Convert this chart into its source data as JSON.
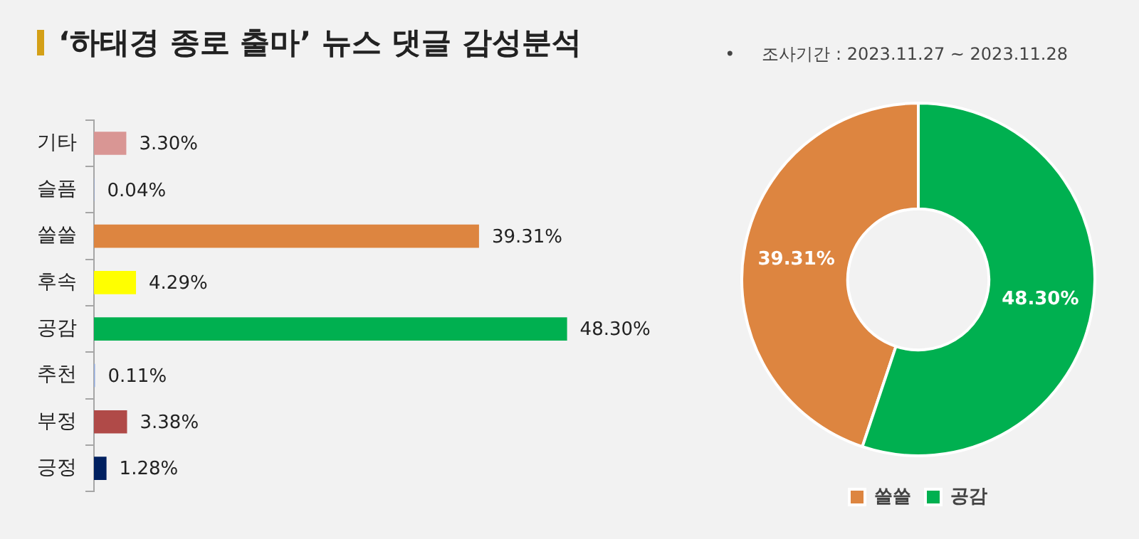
{
  "chart_data": [
    {
      "type": "bar",
      "orientation": "horizontal",
      "title": "‘하태경 종로 출마’ 뉴스 댓글 감성분석",
      "categories": [
        "기타",
        "슬픔",
        "쓸쓸",
        "후속",
        "공감",
        "추천",
        "부정",
        "긍정"
      ],
      "values": [
        3.3,
        0.04,
        39.31,
        4.29,
        48.3,
        0.11,
        3.38,
        1.28
      ],
      "colors": [
        "#d99694",
        "#8faadc",
        "#dd8540",
        "#ffff00",
        "#00b050",
        "#8faadc",
        "#b04a48",
        "#002060"
      ],
      "value_labels": [
        "3.30%",
        "0.04%",
        "39.31%",
        "4.29%",
        "48.30%",
        "0.11%",
        "3.38%",
        "1.28%"
      ]
    },
    {
      "type": "donut",
      "annotations": [
        "•     조사기간 : 2023.11.27 ~ 2023.11.28"
      ],
      "categories": [
        "쓸쓸",
        "공감"
      ],
      "values": [
        39.31,
        48.3
      ],
      "colors": [
        "#dd8540",
        "#00b050"
      ],
      "value_labels": [
        "39.31%",
        "48.30%"
      ],
      "legend": "bottom"
    }
  ]
}
